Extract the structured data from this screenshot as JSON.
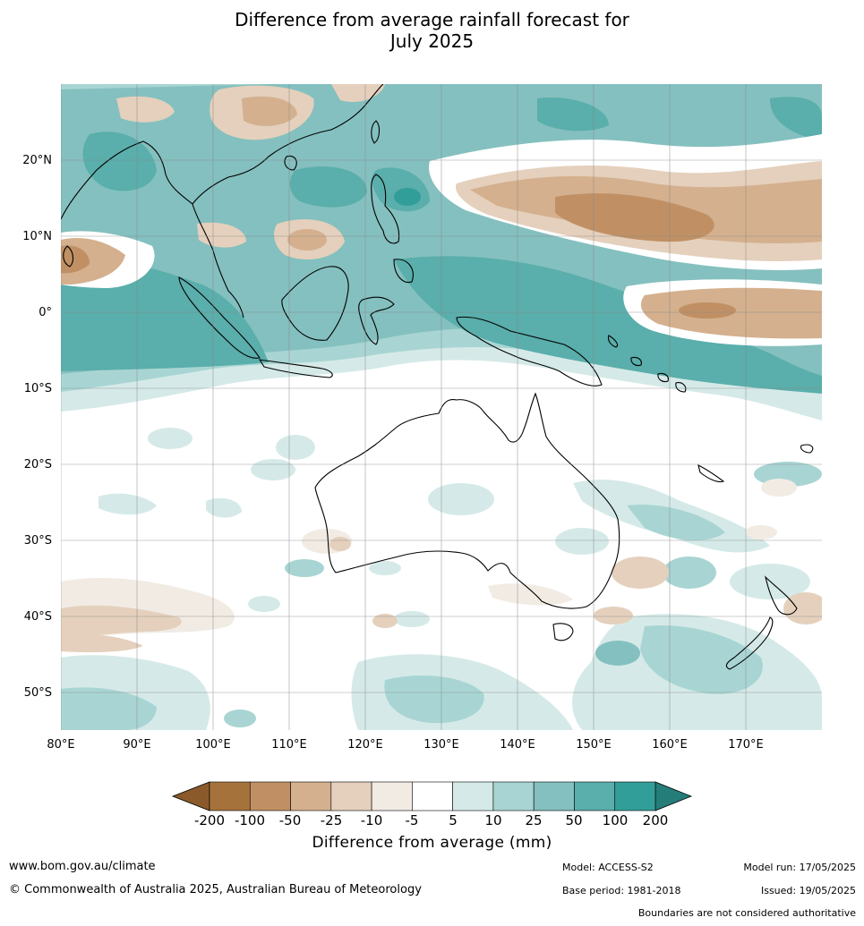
{
  "title": {
    "line1": "Difference from average rainfall forecast for",
    "line2": "July 2025"
  },
  "axes": {
    "lat_ticks": [
      "20°N",
      "10°N",
      "0°",
      "10°S",
      "20°S",
      "30°S",
      "40°S",
      "50°S"
    ],
    "lon_ticks": [
      "80°E",
      "90°E",
      "100°E",
      "110°E",
      "120°E",
      "130°E",
      "140°E",
      "150°E",
      "160°E",
      "170°E"
    ]
  },
  "colorbar": {
    "title": "Difference from average (mm)",
    "levels": [
      "-200",
      "-100",
      "-50",
      "-25",
      "-10",
      "-5",
      "5",
      "10",
      "25",
      "50",
      "100",
      "200"
    ],
    "colors": [
      "#a6723b",
      "#c09064",
      "#d4b08e",
      "#e4d0bc",
      "#f1ebe4",
      "#ffffff",
      "#d5eae8",
      "#a8d5d3",
      "#84c0bf",
      "#5aaeab",
      "#329e9a"
    ],
    "extend_low_color": "#8b5a2b",
    "extend_high_color": "#257d7a"
  },
  "footer": {
    "website": "www.bom.gov.au/climate",
    "copyright": "© Commonwealth of Australia 2025, Australian Bureau of Meteorology",
    "model": "Model: ACCESS-S2",
    "base_period": "Base period: 1981-2018",
    "model_run": "Model run: 17/05/2025",
    "issued": "Issued: 19/05/2025",
    "boundaries_note": "Boundaries are not considered authoritative"
  }
}
